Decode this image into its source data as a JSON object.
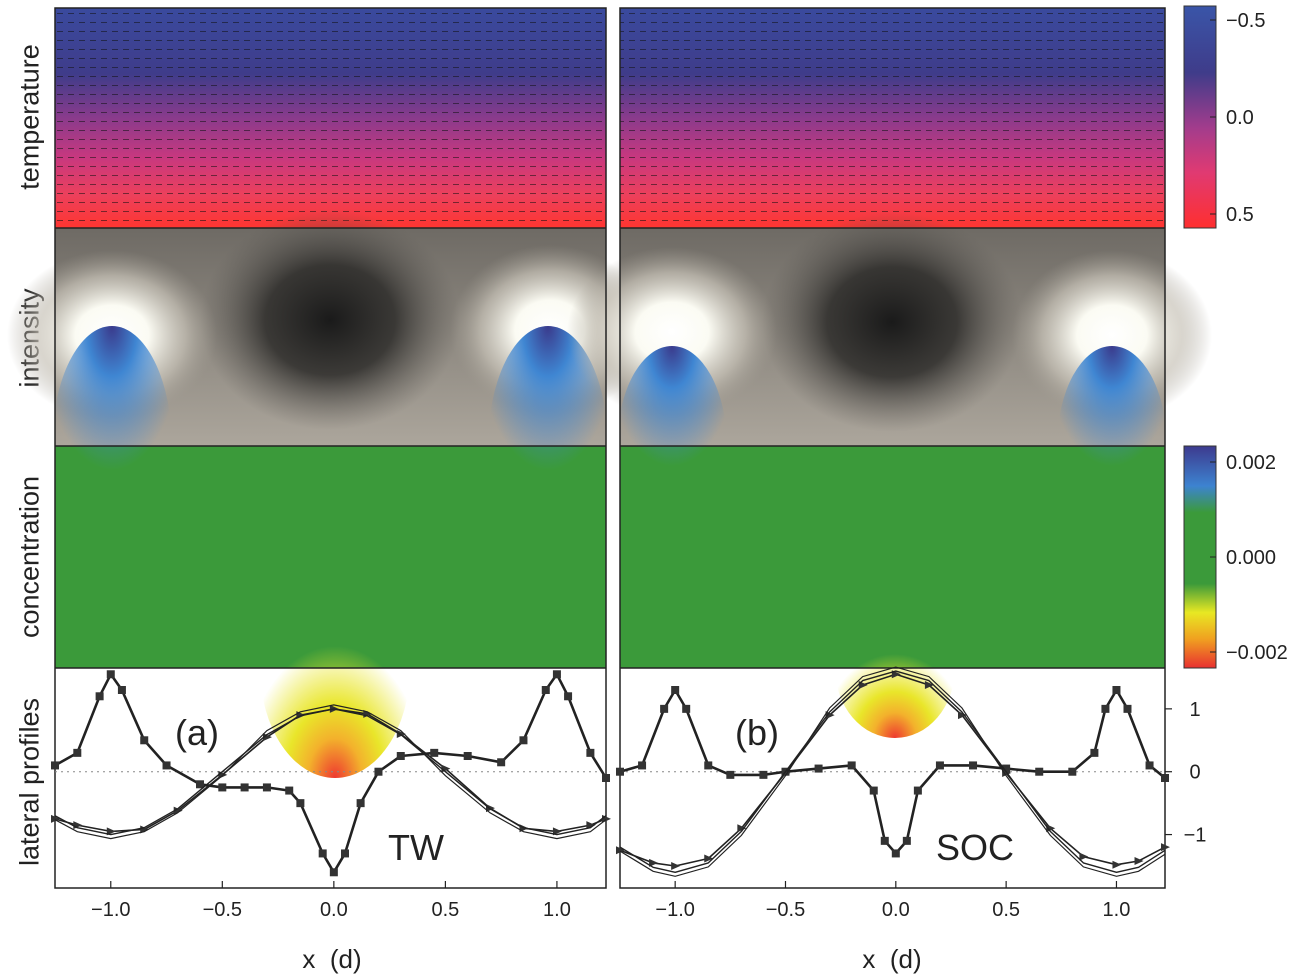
{
  "rows": {
    "temperature": "temperature",
    "intensity": "intensity",
    "concentration": "concentration",
    "profiles": "lateral profiles"
  },
  "colorbars": {
    "temperature": {
      "ticks": [
        {
          "value": -0.5,
          "label": "−0.5"
        },
        {
          "value": 0.0,
          "label": "0.0"
        },
        {
          "value": 0.5,
          "label": "0.5"
        }
      ],
      "colors": [
        "#3a4a9e",
        "#3f3c8a",
        "#9b3c8d",
        "#d0347e",
        "#f04458",
        "#ff3030"
      ]
    },
    "concentration": {
      "ticks": [
        {
          "value": 0.002,
          "label": "0.002"
        },
        {
          "value": 0.0,
          "label": "0.000"
        },
        {
          "value": -0.002,
          "label": "−0.002"
        }
      ],
      "colors": [
        "#3d3a8e",
        "#3d83d0",
        "#3b9a3a",
        "#3b9a3a",
        "#e8e823",
        "#f0a020",
        "#e83030"
      ]
    }
  },
  "panels": [
    {
      "label": "(a)",
      "tag": "TW"
    },
    {
      "label": "(b)",
      "tag": "SOC"
    }
  ],
  "chart_data": [
    {
      "type": "line",
      "panel": "(a)",
      "xlabel": "x  (d)",
      "xlim": [
        -1.25,
        1.22
      ],
      "ylim": [
        -1.85,
        1.65
      ],
      "xticks": [
        {
          "value": -1.0,
          "label": "−1.0"
        },
        {
          "value": -0.5,
          "label": "−0.5"
        },
        {
          "value": 0.0,
          "label": "0.0"
        },
        {
          "value": 0.5,
          "label": "0.5"
        },
        {
          "value": 1.0,
          "label": "1.0"
        }
      ],
      "yticks": [
        {
          "value": 1,
          "label": "1"
        },
        {
          "value": 0,
          "label": "0"
        },
        {
          "value": -1,
          "label": "−1"
        }
      ],
      "series": [
        {
          "marker": "square",
          "x": [
            -1.25,
            -1.15,
            -1.05,
            -1.0,
            -0.95,
            -0.85,
            -0.75,
            -0.6,
            -0.5,
            -0.4,
            -0.3,
            -0.2,
            -0.15,
            -0.05,
            0.0,
            0.05,
            0.12,
            0.2,
            0.3,
            0.45,
            0.6,
            0.75,
            0.85,
            0.95,
            1.0,
            1.05,
            1.15,
            1.22
          ],
          "y": [
            0.1,
            0.3,
            1.2,
            1.55,
            1.3,
            0.5,
            0.1,
            -0.2,
            -0.25,
            -0.25,
            -0.25,
            -0.3,
            -0.5,
            -1.3,
            -1.6,
            -1.3,
            -0.5,
            0.0,
            0.25,
            0.3,
            0.25,
            0.15,
            0.5,
            1.3,
            1.55,
            1.2,
            0.3,
            -0.1
          ]
        },
        {
          "marker": "triangle",
          "x": [
            -1.25,
            -1.15,
            -1.0,
            -0.85,
            -0.7,
            -0.5,
            -0.3,
            -0.15,
            0.0,
            0.15,
            0.3,
            0.5,
            0.7,
            0.85,
            1.0,
            1.15,
            1.22
          ],
          "y": [
            -0.75,
            -0.85,
            -0.95,
            -0.92,
            -0.62,
            -0.05,
            0.55,
            0.9,
            1.0,
            0.92,
            0.6,
            0.05,
            -0.58,
            -0.9,
            -0.95,
            -0.85,
            -0.75
          ]
        },
        {
          "marker": "none",
          "x": [
            -1.25,
            -1.15,
            -1.0,
            -0.85,
            -0.7,
            -0.5,
            -0.3,
            -0.15,
            0.0,
            0.15,
            0.3,
            0.5,
            0.7,
            0.85,
            1.0,
            1.15,
            1.22
          ],
          "y": [
            -0.7,
            -0.89,
            -1.0,
            -0.89,
            -0.59,
            0.0,
            0.59,
            0.89,
            1.0,
            0.89,
            0.59,
            0.0,
            -0.59,
            -0.89,
            -1.0,
            -0.89,
            -0.7
          ]
        }
      ]
    },
    {
      "type": "line",
      "panel": "(b)",
      "xlabel": "x  (d)",
      "xlim": [
        -1.25,
        1.22
      ],
      "ylim": [
        -1.85,
        1.65
      ],
      "xticks": [
        {
          "value": -1.0,
          "label": "−1.0"
        },
        {
          "value": -0.5,
          "label": "−0.5"
        },
        {
          "value": 0.0,
          "label": "0.0"
        },
        {
          "value": 0.5,
          "label": "0.5"
        },
        {
          "value": 1.0,
          "label": "1.0"
        }
      ],
      "yticks": [
        {
          "value": 1,
          "label": "1"
        },
        {
          "value": 0,
          "label": "0"
        },
        {
          "value": -1,
          "label": "−1"
        }
      ],
      "series": [
        {
          "marker": "square",
          "x": [
            -1.25,
            -1.15,
            -1.05,
            -1.0,
            -0.95,
            -0.85,
            -0.75,
            -0.6,
            -0.5,
            -0.35,
            -0.2,
            -0.1,
            -0.05,
            0.0,
            0.05,
            0.1,
            0.2,
            0.35,
            0.5,
            0.65,
            0.8,
            0.9,
            0.95,
            1.0,
            1.05,
            1.15,
            1.22
          ],
          "y": [
            0.0,
            0.1,
            1.0,
            1.3,
            1.0,
            0.1,
            -0.05,
            -0.05,
            0.0,
            0.05,
            0.1,
            -0.3,
            -1.1,
            -1.3,
            -1.1,
            -0.3,
            0.1,
            0.1,
            0.05,
            0.0,
            0.0,
            0.3,
            1.0,
            1.3,
            1.0,
            0.1,
            -0.1
          ]
        },
        {
          "marker": "triangle",
          "x": [
            -1.25,
            -1.1,
            -1.0,
            -0.85,
            -0.7,
            -0.5,
            -0.3,
            -0.15,
            0.0,
            0.15,
            0.3,
            0.5,
            0.7,
            0.85,
            1.0,
            1.1,
            1.22
          ],
          "y": [
            -1.25,
            -1.45,
            -1.5,
            -1.38,
            -0.9,
            -0.02,
            0.9,
            1.38,
            1.55,
            1.38,
            0.9,
            -0.02,
            -0.9,
            -1.35,
            -1.48,
            -1.42,
            -1.2
          ]
        },
        {
          "marker": "none",
          "x": [
            -1.25,
            -1.1,
            -1.0,
            -0.85,
            -0.7,
            -0.5,
            -0.3,
            -0.15,
            0.0,
            0.15,
            0.3,
            0.5,
            0.7,
            0.85,
            1.0,
            1.1,
            1.22
          ],
          "y": [
            -1.2,
            -1.52,
            -1.6,
            -1.45,
            -0.95,
            0.0,
            0.95,
            1.45,
            1.6,
            1.45,
            0.95,
            0.0,
            -0.95,
            -1.45,
            -1.6,
            -1.52,
            -1.25
          ]
        }
      ]
    }
  ]
}
